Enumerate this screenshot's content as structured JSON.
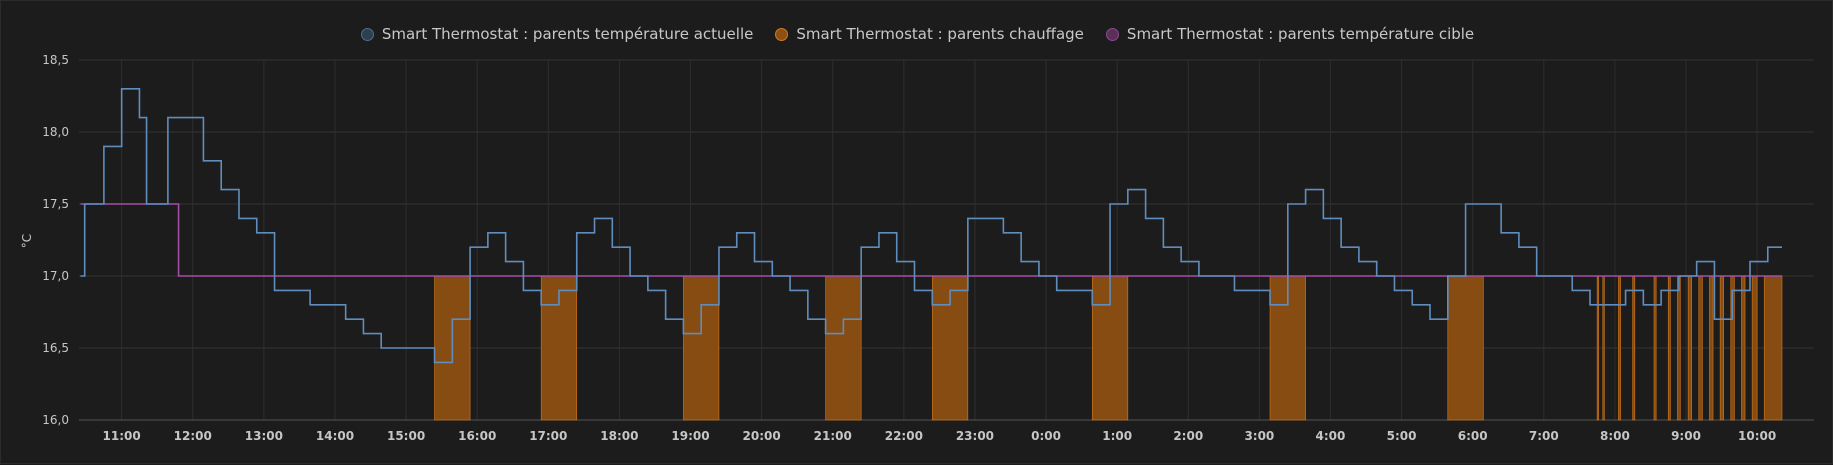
{
  "legend": [
    {
      "label": "Smart Thermostat : parents température actuelle",
      "color": "#4e6e91",
      "fill": "#2e3f52"
    },
    {
      "label": "Smart Thermostat : parents chauffage",
      "color": "#d67a1e",
      "fill": "#8d4f12"
    },
    {
      "label": "Smart Thermostat : parents température cible",
      "color": "#8c4a8e",
      "fill": "#5a3059"
    }
  ],
  "chart_data": {
    "type": "line",
    "ylabel": "°C",
    "ylim": [
      16.0,
      18.5
    ],
    "y_ticks": [
      "18,5",
      "18,0",
      "17,5",
      "17,0",
      "16,5",
      "16,0"
    ],
    "x_range_hours": [
      10.4,
      34.8
    ],
    "x_ticks": [
      {
        "h": 11,
        "label": "11:00"
      },
      {
        "h": 12,
        "label": "12:00"
      },
      {
        "h": 13,
        "label": "13:00"
      },
      {
        "h": 14,
        "label": "14:00"
      },
      {
        "h": 15,
        "label": "15:00"
      },
      {
        "h": 16,
        "label": "16:00"
      },
      {
        "h": 17,
        "label": "17:00"
      },
      {
        "h": 18,
        "label": "18:00"
      },
      {
        "h": 19,
        "label": "19:00"
      },
      {
        "h": 20,
        "label": "20:00"
      },
      {
        "h": 21,
        "label": "21:00"
      },
      {
        "h": 22,
        "label": "22:00"
      },
      {
        "h": 23,
        "label": "23:00"
      },
      {
        "h": 24,
        "label": "0:00"
      },
      {
        "h": 25,
        "label": "1:00"
      },
      {
        "h": 26,
        "label": "2:00"
      },
      {
        "h": 27,
        "label": "3:00"
      },
      {
        "h": 28,
        "label": "4:00"
      },
      {
        "h": 29,
        "label": "5:00"
      },
      {
        "h": 30,
        "label": "6:00"
      },
      {
        "h": 31,
        "label": "7:00"
      },
      {
        "h": 32,
        "label": "8:00"
      },
      {
        "h": 33,
        "label": "9:00"
      },
      {
        "h": 34,
        "label": "10:00"
      }
    ],
    "series": [
      {
        "name": "Smart Thermostat : parents température actuelle",
        "step": true,
        "points": [
          [
            10.42,
            17.0
          ],
          [
            10.48,
            17.5
          ],
          [
            10.75,
            17.9
          ],
          [
            11.0,
            18.3
          ],
          [
            11.25,
            18.1
          ],
          [
            11.35,
            17.5
          ],
          [
            11.65,
            18.1
          ],
          [
            12.15,
            17.8
          ],
          [
            12.4,
            17.6
          ],
          [
            12.65,
            17.4
          ],
          [
            12.9,
            17.3
          ],
          [
            13.15,
            16.9
          ],
          [
            13.65,
            16.8
          ],
          [
            14.15,
            16.7
          ],
          [
            14.4,
            16.6
          ],
          [
            14.65,
            16.5
          ],
          [
            15.4,
            16.4
          ],
          [
            15.65,
            16.7
          ],
          [
            15.9,
            17.2
          ],
          [
            16.15,
            17.3
          ],
          [
            16.4,
            17.1
          ],
          [
            16.65,
            16.9
          ],
          [
            16.9,
            16.8
          ],
          [
            17.15,
            16.9
          ],
          [
            17.4,
            17.3
          ],
          [
            17.65,
            17.4
          ],
          [
            17.9,
            17.2
          ],
          [
            18.15,
            17.0
          ],
          [
            18.4,
            16.9
          ],
          [
            18.65,
            16.7
          ],
          [
            18.9,
            16.6
          ],
          [
            19.15,
            16.8
          ],
          [
            19.4,
            17.2
          ],
          [
            19.65,
            17.3
          ],
          [
            19.9,
            17.1
          ],
          [
            20.15,
            17.0
          ],
          [
            20.4,
            16.9
          ],
          [
            20.65,
            16.7
          ],
          [
            20.9,
            16.6
          ],
          [
            21.15,
            16.7
          ],
          [
            21.4,
            17.2
          ],
          [
            21.65,
            17.3
          ],
          [
            21.9,
            17.1
          ],
          [
            22.15,
            16.9
          ],
          [
            22.4,
            16.8
          ],
          [
            22.65,
            16.9
          ],
          [
            22.9,
            17.4
          ],
          [
            23.4,
            17.3
          ],
          [
            23.65,
            17.1
          ],
          [
            23.9,
            17.0
          ],
          [
            24.15,
            16.9
          ],
          [
            24.65,
            16.8
          ],
          [
            24.9,
            17.5
          ],
          [
            25.15,
            17.6
          ],
          [
            25.4,
            17.4
          ],
          [
            25.65,
            17.2
          ],
          [
            25.9,
            17.1
          ],
          [
            26.15,
            17.0
          ],
          [
            26.65,
            16.9
          ],
          [
            27.15,
            16.8
          ],
          [
            27.4,
            17.5
          ],
          [
            27.65,
            17.6
          ],
          [
            27.9,
            17.4
          ],
          [
            28.15,
            17.2
          ],
          [
            28.4,
            17.1
          ],
          [
            28.65,
            17.0
          ],
          [
            28.9,
            16.9
          ],
          [
            29.15,
            16.8
          ],
          [
            29.4,
            16.7
          ],
          [
            29.65,
            17.0
          ],
          [
            29.9,
            17.5
          ],
          [
            30.4,
            17.3
          ],
          [
            30.65,
            17.2
          ],
          [
            30.9,
            17.0
          ],
          [
            31.4,
            16.9
          ],
          [
            31.65,
            16.8
          ],
          [
            32.15,
            16.9
          ],
          [
            32.4,
            16.8
          ],
          [
            32.65,
            16.9
          ],
          [
            32.9,
            17.0
          ],
          [
            33.15,
            17.1
          ],
          [
            33.4,
            16.7
          ],
          [
            33.65,
            16.9
          ],
          [
            33.9,
            17.1
          ],
          [
            34.15,
            17.2
          ],
          [
            34.35,
            17.2
          ]
        ]
      },
      {
        "name": "Smart Thermostat : parents température cible",
        "step": true,
        "points": [
          [
            10.42,
            17.5
          ],
          [
            11.8,
            17.0
          ],
          [
            34.35,
            17.0
          ]
        ]
      },
      {
        "name": "Smart Thermostat : parents chauffage",
        "bands": [
          [
            15.4,
            15.9
          ],
          [
            16.9,
            17.4
          ],
          [
            18.9,
            19.4
          ],
          [
            20.9,
            21.4
          ],
          [
            22.4,
            22.9
          ],
          [
            24.65,
            25.15
          ],
          [
            27.15,
            27.65
          ],
          [
            29.65,
            30.15
          ],
          [
            31.75,
            31.77
          ],
          [
            31.83,
            31.85
          ],
          [
            32.05,
            32.08
          ],
          [
            32.25,
            32.28
          ],
          [
            32.55,
            32.58
          ],
          [
            32.75,
            32.78
          ],
          [
            32.88,
            32.92
          ],
          [
            33.03,
            33.08
          ],
          [
            33.18,
            33.23
          ],
          [
            33.33,
            33.38
          ],
          [
            33.48,
            33.53
          ],
          [
            33.63,
            33.68
          ],
          [
            33.78,
            33.83
          ],
          [
            33.93,
            34.0
          ],
          [
            34.1,
            34.35
          ]
        ]
      }
    ]
  }
}
